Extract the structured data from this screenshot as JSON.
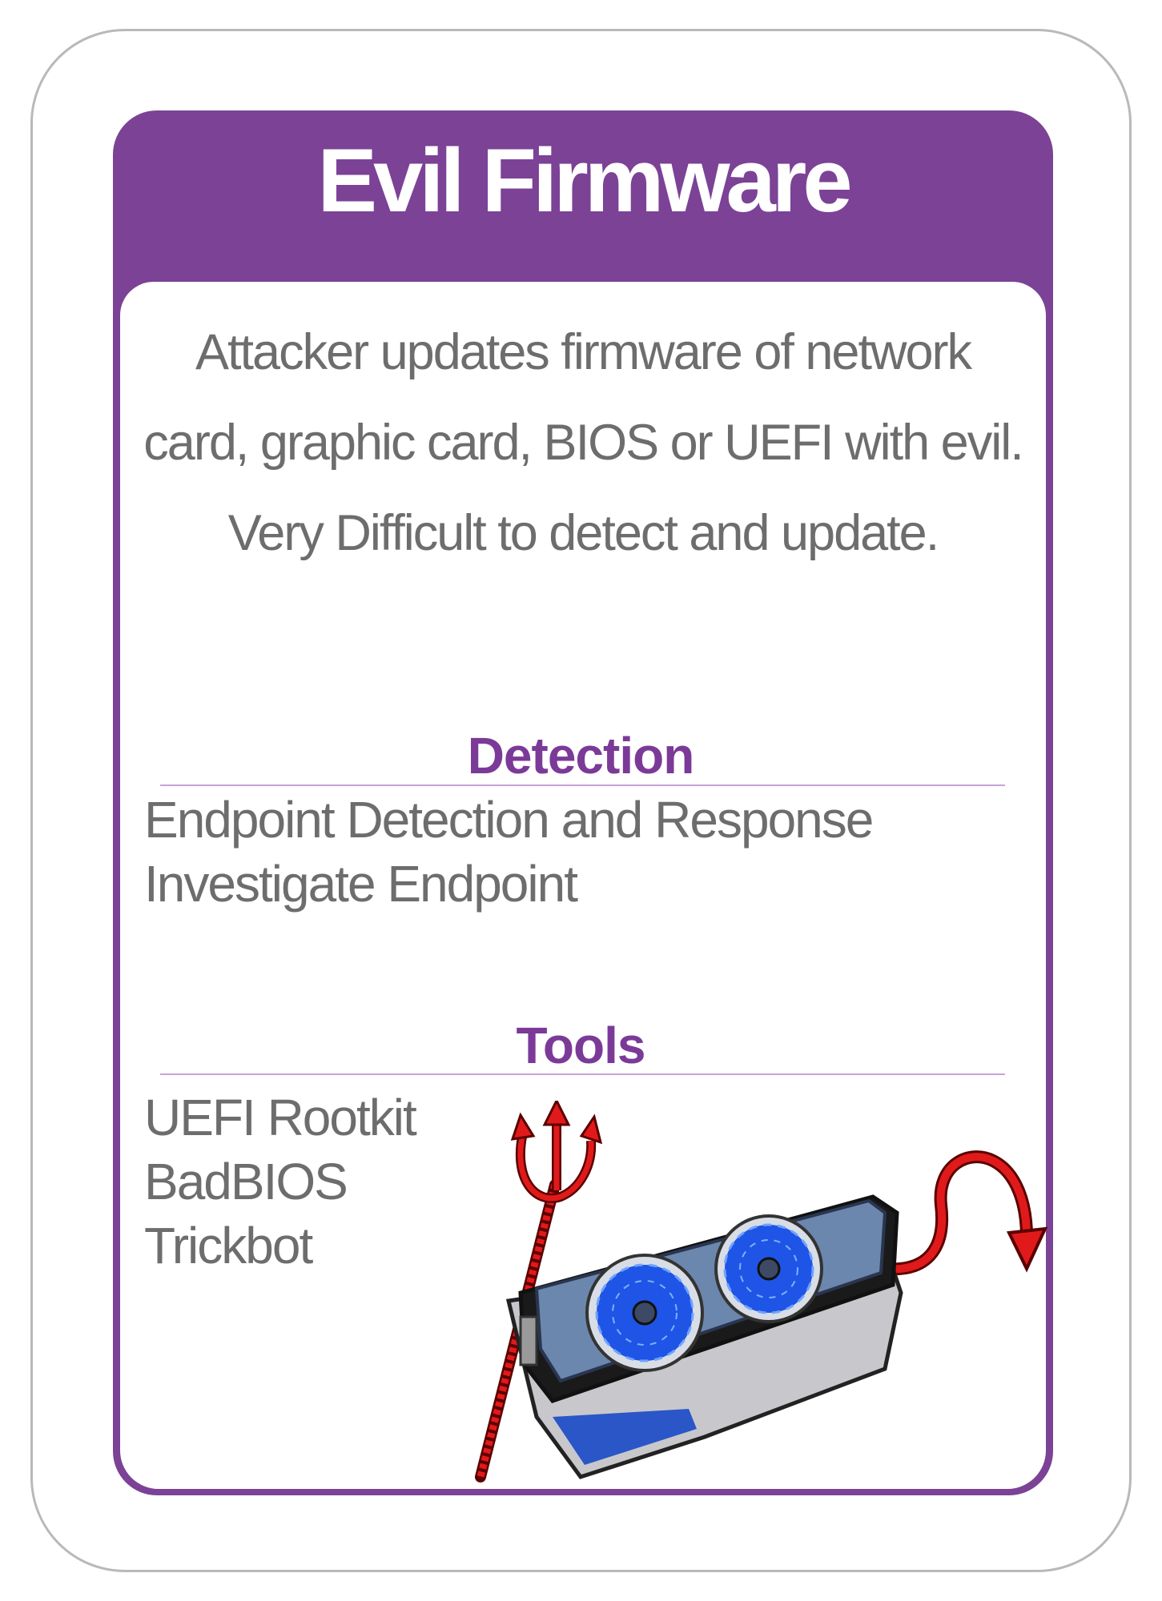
{
  "card": {
    "title": "Evil Firmware",
    "description_lines": [
      "Attacker updates firmware of network",
      "card, graphic card, BIOS or UEFI with evil.",
      "Very Difficult to detect and update."
    ],
    "detection": {
      "heading": "Detection",
      "items": [
        "Endpoint Detection and Response",
        "Investigate Endpoint"
      ]
    },
    "tools": {
      "heading": "Tools",
      "items": [
        "UEFI Rootkit",
        "BadBIOS",
        "Trickbot"
      ]
    },
    "illustration": {
      "icons": [
        "graphics-card-icon",
        "devil-trident-icon",
        "devil-tail-icon"
      ]
    },
    "colors": {
      "frame": "#7b4296",
      "heading": "#7b3a98",
      "text": "#6d6d6d",
      "divider": "#c7a2dc"
    }
  }
}
